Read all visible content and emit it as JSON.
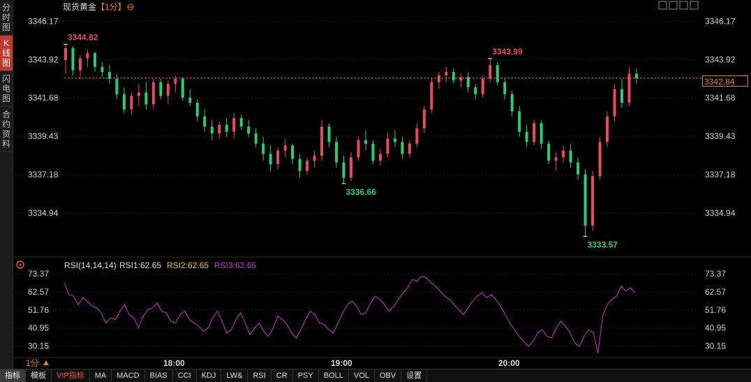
{
  "sidebar": {
    "tabs": [
      {
        "label": "分时图",
        "active": false
      },
      {
        "label": "K线图",
        "active": true
      },
      {
        "label": "闪电图",
        "active": false
      },
      {
        "label": "合约资料",
        "active": false
      }
    ]
  },
  "header": {
    "title": "现货黄金",
    "period": "【1分】",
    "settings_icon": "settings-circle-icon"
  },
  "window_controls": [
    "zoom-in-icon",
    "zoom-out-icon",
    "pan-left-icon",
    "pan-right-icon"
  ],
  "main_axis": {
    "ticks": [
      "3346.17",
      "3343.92",
      "3341.68",
      "3339.43",
      "3337.18",
      "3334.94"
    ],
    "current_price": "3342.84"
  },
  "annotations": {
    "high1": "3344.82",
    "high2": "3343.99",
    "low1": "3336.66",
    "low2": "3333.57"
  },
  "rsi": {
    "params": "RSI(14,14,14)",
    "rsi1": "RSI1:62.65",
    "rsi2": "RSI2:62.65",
    "rsi3": "RSI3:62.65",
    "ticks": [
      "73.37",
      "62.57",
      "51.76",
      "40.95",
      "30.15"
    ]
  },
  "time_axis": {
    "period_label": "1分",
    "labels": [
      "18:00",
      "19:00",
      "20:00"
    ]
  },
  "colors": {
    "up": "#e84a5f",
    "down": "#2ecc71",
    "rsi_line": "#cc33cc",
    "rsi2": "#e6c34a",
    "current_line": "#e67e22"
  },
  "toolbar": {
    "items": [
      "指标",
      "模板",
      "VIP指标",
      "MA",
      "MACD",
      "BIAS",
      "CCI",
      "KDJ",
      "LW&",
      "RSI",
      "CR",
      "PSY",
      "BOLL",
      "VOL",
      "OBV",
      "设置"
    ]
  },
  "chart_data": {
    "type": "candlestick",
    "y_range": [
      3333.3,
      3346.6
    ],
    "candles": [
      [
        3343.9,
        3344.82,
        3343.1,
        3344.6
      ],
      [
        3344.6,
        3344.7,
        3343.0,
        3343.3
      ],
      [
        3343.3,
        3344.2,
        3342.8,
        3344.0
      ],
      [
        3344.0,
        3344.5,
        3343.5,
        3344.3
      ],
      [
        3344.3,
        3344.4,
        3343.2,
        3343.5
      ],
      [
        3343.5,
        3343.8,
        3342.9,
        3343.2
      ],
      [
        3343.2,
        3343.6,
        3342.5,
        3342.8
      ],
      [
        3342.8,
        3343.1,
        3341.6,
        3341.9
      ],
      [
        3341.9,
        3342.3,
        3340.8,
        3341.0
      ],
      [
        3341.0,
        3342.0,
        3340.7,
        3341.8
      ],
      [
        3341.8,
        3342.5,
        3341.2,
        3342.0
      ],
      [
        3342.0,
        3342.6,
        3341.0,
        3341.3
      ],
      [
        3341.3,
        3342.8,
        3341.0,
        3342.6
      ],
      [
        3342.6,
        3342.8,
        3341.6,
        3341.8
      ],
      [
        3341.8,
        3342.7,
        3341.3,
        3342.5
      ],
      [
        3342.5,
        3343.0,
        3342.0,
        3342.8
      ],
      [
        3342.8,
        3342.9,
        3341.5,
        3341.7
      ],
      [
        3341.7,
        3342.2,
        3341.2,
        3341.4
      ],
      [
        3341.4,
        3341.6,
        3340.3,
        3340.6
      ],
      [
        3340.6,
        3341.0,
        3339.7,
        3340.0
      ],
      [
        3340.0,
        3340.4,
        3339.2,
        3339.6
      ],
      [
        3339.6,
        3340.3,
        3339.3,
        3340.1
      ],
      [
        3340.1,
        3340.5,
        3339.4,
        3339.7
      ],
      [
        3339.7,
        3340.8,
        3339.3,
        3340.5
      ],
      [
        3340.5,
        3340.7,
        3339.8,
        3340.0
      ],
      [
        3340.0,
        3340.4,
        3339.4,
        3339.6
      ],
      [
        3339.6,
        3339.9,
        3338.8,
        3339.0
      ],
      [
        3339.0,
        3339.4,
        3338.0,
        3338.4
      ],
      [
        3338.4,
        3338.9,
        3337.4,
        3337.8
      ],
      [
        3337.8,
        3338.8,
        3337.5,
        3338.6
      ],
      [
        3338.6,
        3339.3,
        3338.2,
        3338.9
      ],
      [
        3338.9,
        3339.0,
        3337.8,
        3338.1
      ],
      [
        3338.1,
        3338.4,
        3337.0,
        3337.4
      ],
      [
        3337.4,
        3338.2,
        3337.2,
        3338.0
      ],
      [
        3338.0,
        3338.6,
        3337.6,
        3338.3
      ],
      [
        3338.3,
        3340.4,
        3338.0,
        3340.0
      ],
      [
        3340.0,
        3340.2,
        3338.8,
        3339.1
      ],
      [
        3339.1,
        3339.4,
        3337.6,
        3337.9
      ],
      [
        3337.9,
        3338.3,
        3336.66,
        3337.0
      ],
      [
        3337.0,
        3338.5,
        3336.8,
        3338.2
      ],
      [
        3338.2,
        3339.4,
        3338.0,
        3339.2
      ],
      [
        3339.2,
        3339.8,
        3338.6,
        3339.0
      ],
      [
        3339.0,
        3339.2,
        3337.8,
        3338.0
      ],
      [
        3338.0,
        3338.7,
        3337.7,
        3338.4
      ],
      [
        3338.4,
        3339.6,
        3338.2,
        3339.3
      ],
      [
        3339.3,
        3339.8,
        3338.8,
        3339.1
      ],
      [
        3339.1,
        3339.4,
        3338.1,
        3338.4
      ],
      [
        3338.4,
        3339.2,
        3338.2,
        3339.0
      ],
      [
        3339.0,
        3340.2,
        3338.8,
        3339.9
      ],
      [
        3339.9,
        3341.2,
        3339.6,
        3341.0
      ],
      [
        3341.0,
        3342.8,
        3340.8,
        3342.6
      ],
      [
        3342.6,
        3343.2,
        3342.2,
        3343.0
      ],
      [
        3343.0,
        3343.5,
        3342.6,
        3343.2
      ],
      [
        3343.2,
        3343.4,
        3342.5,
        3342.7
      ],
      [
        3342.7,
        3343.1,
        3342.3,
        3342.9
      ],
      [
        3342.9,
        3343.2,
        3342.0,
        3342.3
      ],
      [
        3342.3,
        3342.5,
        3341.6,
        3341.9
      ],
      [
        3341.9,
        3343.0,
        3341.7,
        3342.8
      ],
      [
        3342.8,
        3343.99,
        3342.6,
        3343.6
      ],
      [
        3343.6,
        3343.8,
        3342.4,
        3342.6
      ],
      [
        3342.6,
        3342.8,
        3341.6,
        3341.9
      ],
      [
        3341.9,
        3342.1,
        3340.6,
        3340.9
      ],
      [
        3340.9,
        3341.2,
        3339.4,
        3339.7
      ],
      [
        3339.7,
        3340.1,
        3338.8,
        3339.1
      ],
      [
        3339.1,
        3340.4,
        3338.9,
        3340.2
      ],
      [
        3340.2,
        3340.4,
        3338.7,
        3339.0
      ],
      [
        3339.0,
        3339.2,
        3337.8,
        3338.0
      ],
      [
        3338.0,
        3338.5,
        3337.4,
        3338.2
      ],
      [
        3338.2,
        3338.9,
        3337.9,
        3338.6
      ],
      [
        3338.6,
        3339.0,
        3337.6,
        3337.9
      ],
      [
        3337.9,
        3338.2,
        3336.9,
        3337.2
      ],
      [
        3337.2,
        3337.5,
        3333.57,
        3334.2
      ],
      [
        3334.2,
        3337.4,
        3333.9,
        3337.1
      ],
      [
        3337.1,
        3339.4,
        3336.9,
        3339.1
      ],
      [
        3339.1,
        3340.9,
        3338.8,
        3340.6
      ],
      [
        3340.6,
        3342.5,
        3340.3,
        3342.2
      ],
      [
        3342.2,
        3342.8,
        3341.1,
        3341.4
      ],
      [
        3341.4,
        3343.5,
        3341.2,
        3343.1
      ],
      [
        3343.1,
        3343.4,
        3342.5,
        3342.84
      ]
    ],
    "rsi_values": [
      68,
      61,
      60,
      55,
      59,
      57,
      54,
      53,
      50,
      44,
      47,
      46,
      51,
      55,
      49,
      47,
      41,
      48,
      52,
      53,
      56,
      51,
      50,
      45,
      44,
      49,
      51,
      46,
      44,
      42,
      39,
      41,
      47,
      51,
      45,
      38,
      40,
      46,
      50,
      44,
      37,
      41,
      44,
      39,
      36,
      41,
      48,
      46,
      43,
      38,
      35,
      40,
      46,
      51,
      49,
      44,
      43,
      40,
      38,
      44,
      50,
      55,
      57,
      54,
      49,
      50,
      56,
      60,
      58,
      55,
      51,
      54,
      58,
      62,
      65,
      70,
      69,
      72,
      71,
      68,
      66,
      63,
      60,
      58,
      55,
      52,
      49,
      53,
      57,
      60,
      62,
      59,
      61,
      58,
      54,
      49,
      44,
      40,
      36,
      33,
      30,
      33,
      38,
      40,
      36,
      35,
      41,
      45,
      42,
      38,
      32,
      30,
      36,
      40,
      38,
      26,
      48,
      55,
      58,
      60,
      66,
      63,
      65,
      62
    ]
  }
}
